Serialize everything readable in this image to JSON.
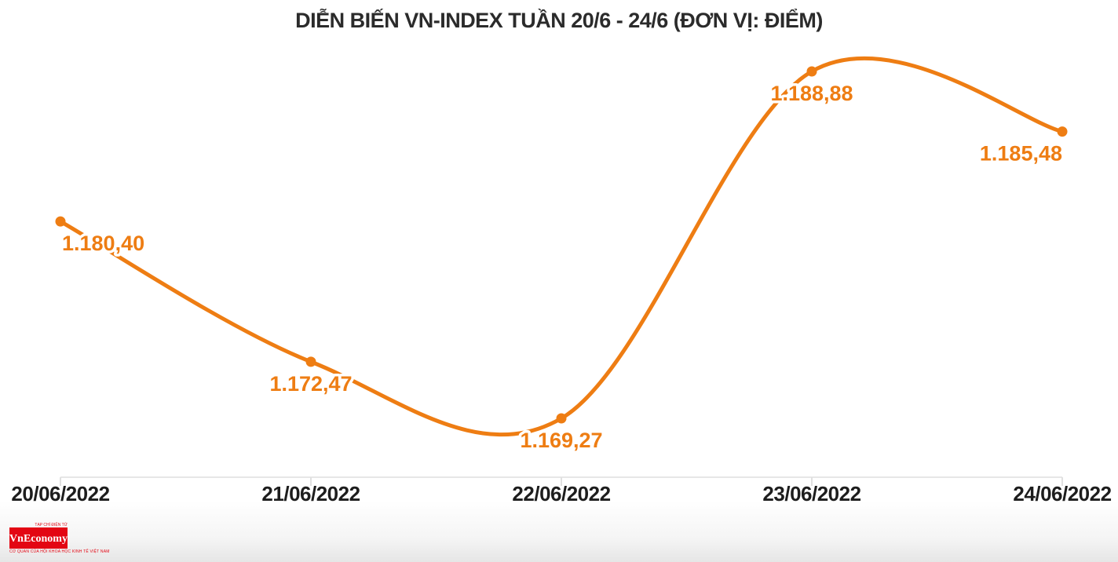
{
  "chart_data": {
    "type": "line",
    "title": "DIỄN BIẾN VN-INDEX TUẦN 20/6 - 24/6 (ĐƠN VỊ: ĐIỂM)",
    "unit": "ĐIỂM",
    "categories": [
      "20/06/2022",
      "21/06/2022",
      "22/06/2022",
      "23/06/2022",
      "24/06/2022"
    ],
    "series": [
      {
        "name": "VN-Index",
        "values": [
          1180.4,
          1172.47,
          1169.27,
          1188.88,
          1185.48
        ],
        "point_labels": [
          "1.180,40",
          "1.172,47",
          "1.169,27",
          "1.188,88",
          "1.185,48"
        ]
      }
    ],
    "ylim": [
      1169.27,
      1188.88
    ],
    "grid": false,
    "legend_position": "none",
    "line_color": "#EE7D13",
    "label_color": "#EE7D13",
    "axis_color": "#E7E7E7",
    "tick_color": "#E0E0E0",
    "title_color": "#2b2b2b",
    "xlabel_color": "#1d1d1d"
  },
  "branding": {
    "logo_top_text": "TẠP CHÍ ĐIỆN TỬ",
    "logo_wordmark": "VnEconomy",
    "logo_tagline": "CƠ QUAN CỦA HỘI KHOA HỌC KINH TẾ VIỆT NAM",
    "logo_bg_color": "#E30613"
  }
}
